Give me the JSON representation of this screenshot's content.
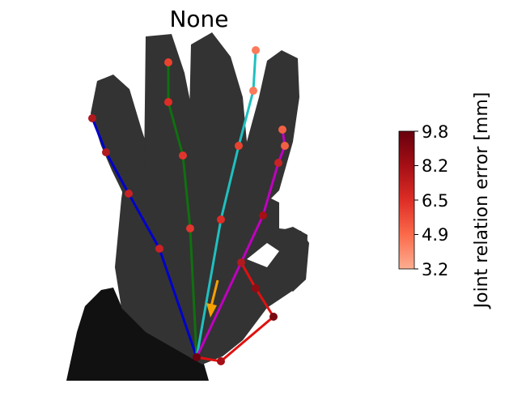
{
  "figure": {
    "title": "None"
  },
  "colorbar": {
    "label": "Joint relation error [mm]",
    "ticks": [
      "9.8",
      "8.2",
      "6.5",
      "4.9",
      "3.2"
    ],
    "min": 3.2,
    "max": 9.8,
    "colormap": [
      "#fcae91",
      "#fb6a4a",
      "#de2d26",
      "#a50f15",
      "#67000d"
    ]
  },
  "finger_colors": {
    "thumb": "#e01010",
    "index": "#c000c0",
    "middle": "#20c0c0",
    "ring": "#107010",
    "pinky": "#0000cc"
  },
  "annotation": {
    "arrow_color": "#f5a100"
  },
  "depth_colors": {
    "hand": "#333333",
    "arm": "#111111"
  }
}
